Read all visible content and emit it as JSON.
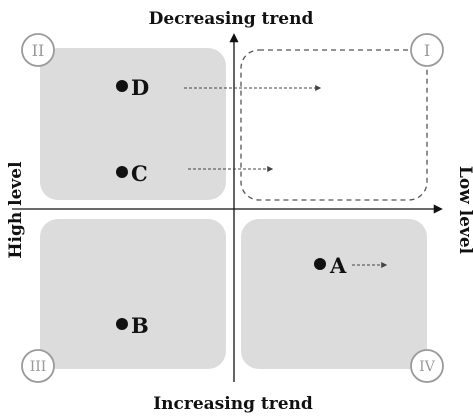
{
  "labels": {
    "top": "Decreasing trend",
    "bottom": "Increasing trend",
    "left": "High level",
    "right": "Low level"
  },
  "quadrants": {
    "q1": "I",
    "q2": "II",
    "q3": "III",
    "q4": "IV"
  },
  "points": {
    "a": "A",
    "b": "B",
    "c": "C",
    "d": "D"
  },
  "colors": {
    "quadrant_fill": "#dcdcdc",
    "quadrant_dashed_stroke": "#555555",
    "axis": "#111111",
    "badge": "#9a9a9a",
    "text": "#111111"
  }
}
